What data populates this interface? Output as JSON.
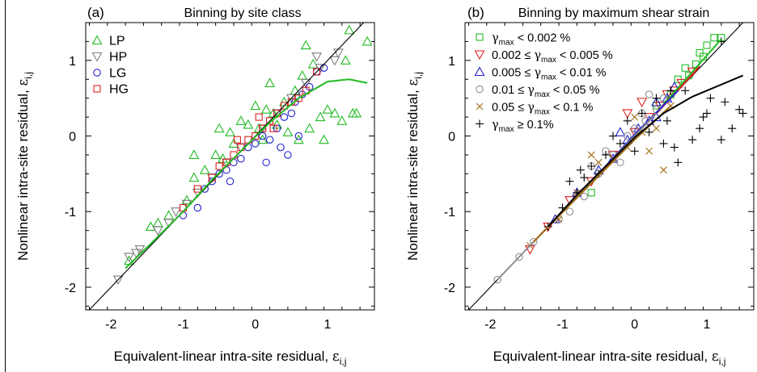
{
  "chart_data": [
    {
      "type": "scatter",
      "panel_label": "(a)",
      "title": "Binning by site class",
      "xlabel": "Equivalent-linear intra-site residual,",
      "xlabel_symbol": "ε",
      "xlabel_subscript": "i,j",
      "ylabel": "Nonlinear intra-site residual,",
      "ylabel_symbol": "ε",
      "ylabel_subscript": "i,j",
      "xlim": [
        -2.35,
        1.65
      ],
      "ylim": [
        -2.3,
        1.5
      ],
      "xticks": [
        -2,
        -1,
        0,
        1
      ],
      "yticks": [
        -2,
        -1,
        0,
        1
      ],
      "legend_position": "top-left",
      "series": [
        {
          "name": "LP",
          "marker": "triangle-up",
          "color": "#22bb22",
          "points": [
            [
              -1.75,
              -1.65
            ],
            [
              -1.45,
              -1.2
            ],
            [
              -1.35,
              -1.15
            ],
            [
              -1.2,
              -1.05
            ],
            [
              -0.95,
              -0.85
            ],
            [
              -0.85,
              -0.55
            ],
            [
              -0.7,
              -0.45
            ],
            [
              -0.55,
              -0.25
            ],
            [
              -0.45,
              -0.3
            ],
            [
              -0.35,
              0.05
            ],
            [
              -0.3,
              -0.1
            ],
            [
              -0.2,
              0.2
            ],
            [
              -0.1,
              0.15
            ],
            [
              0.0,
              0.4
            ],
            [
              0.05,
              0.1
            ],
            [
              0.1,
              -0.05
            ],
            [
              0.15,
              0.35
            ],
            [
              0.25,
              0.3
            ],
            [
              0.3,
              0.15
            ],
            [
              0.4,
              0.45
            ],
            [
              0.45,
              0.05
            ],
            [
              0.55,
              0.6
            ],
            [
              0.6,
              -0.05
            ],
            [
              0.65,
              0.8
            ],
            [
              0.75,
              0.1
            ],
            [
              0.8,
              0.95
            ],
            [
              0.9,
              0.25
            ],
            [
              1.0,
              0.35
            ],
            [
              1.1,
              0.3
            ],
            [
              1.2,
              0.2
            ],
            [
              1.25,
              1.0
            ],
            [
              1.3,
              1.4
            ],
            [
              1.35,
              0.3
            ],
            [
              1.4,
              0.3
            ],
            [
              1.55,
              1.25
            ],
            [
              0.2,
              0.7
            ],
            [
              -0.5,
              0.1
            ],
            [
              -0.85,
              -0.25
            ],
            [
              0.7,
              1.2
            ],
            [
              0.95,
              -0.05
            ]
          ]
        },
        {
          "name": "HP",
          "marker": "triangle-down",
          "color": "#808080",
          "points": [
            [
              -1.9,
              -1.9
            ],
            [
              -1.75,
              -1.6
            ],
            [
              -1.65,
              -1.55
            ],
            [
              -1.6,
              -1.5
            ],
            [
              -1.35,
              -1.25
            ],
            [
              -1.2,
              -1.15
            ],
            [
              -1.1,
              -1.0
            ],
            [
              -0.95,
              -0.9
            ],
            [
              -0.8,
              -0.75
            ],
            [
              -0.6,
              -0.55
            ],
            [
              -0.4,
              -0.35
            ],
            [
              -0.2,
              -0.15
            ],
            [
              0.1,
              0.1
            ],
            [
              0.3,
              0.3
            ],
            [
              0.5,
              0.5
            ],
            [
              0.7,
              0.7
            ],
            [
              0.9,
              0.9
            ],
            [
              1.1,
              1.0
            ],
            [
              1.15,
              1.1
            ],
            [
              0.85,
              1.05
            ]
          ]
        },
        {
          "name": "LG",
          "marker": "circle",
          "color": "#2222cc",
          "points": [
            [
              -1.0,
              -1.05
            ],
            [
              -0.8,
              -0.95
            ],
            [
              -0.7,
              -0.7
            ],
            [
              -0.6,
              -0.6
            ],
            [
              -0.5,
              -0.5
            ],
            [
              -0.4,
              -0.45
            ],
            [
              -0.3,
              -0.35
            ],
            [
              -0.2,
              -0.3
            ],
            [
              -0.1,
              -0.15
            ],
            [
              0.0,
              -0.1
            ],
            [
              0.1,
              0.0
            ],
            [
              0.2,
              -0.05
            ],
            [
              0.3,
              0.1
            ],
            [
              0.35,
              -0.15
            ],
            [
              0.4,
              0.25
            ],
            [
              0.5,
              0.3
            ],
            [
              0.55,
              0.45
            ],
            [
              0.6,
              0.0
            ],
            [
              0.65,
              0.55
            ],
            [
              0.75,
              0.65
            ],
            [
              0.85,
              0.85
            ],
            [
              0.95,
              0.9
            ],
            [
              -0.35,
              -0.6
            ],
            [
              0.15,
              -0.35
            ],
            [
              0.45,
              -0.25
            ]
          ]
        },
        {
          "name": "HG",
          "marker": "square",
          "color": "#dd2222",
          "points": [
            [
              -1.0,
              -0.95
            ],
            [
              -0.8,
              -0.7
            ],
            [
              -0.6,
              -0.55
            ],
            [
              -0.5,
              -0.4
            ],
            [
              -0.4,
              -0.35
            ],
            [
              -0.3,
              -0.25
            ],
            [
              -0.2,
              -0.15
            ],
            [
              -0.1,
              -0.05
            ],
            [
              0.0,
              0.0
            ],
            [
              0.1,
              0.1
            ],
            [
              0.2,
              0.2
            ],
            [
              0.3,
              0.3
            ],
            [
              0.4,
              0.4
            ],
            [
              0.5,
              0.45
            ],
            [
              0.6,
              0.5
            ],
            [
              0.7,
              0.6
            ],
            [
              0.85,
              0.85
            ],
            [
              -0.25,
              -0.05
            ],
            [
              0.05,
              0.25
            ],
            [
              0.25,
              0.1
            ]
          ]
        }
      ],
      "reference_line": {
        "type": "1:1",
        "from": [
          -2.35,
          -2.35
        ],
        "to": [
          1.65,
          1.65
        ],
        "color": "#000000"
      },
      "fit_curve": {
        "color": "#22bb22",
        "x": [
          -1.8,
          -1.4,
          -1.0,
          -0.6,
          -0.2,
          0.2,
          0.6,
          1.0,
          1.3,
          1.55
        ],
        "y": [
          -1.75,
          -1.38,
          -1.0,
          -0.58,
          -0.2,
          0.18,
          0.5,
          0.72,
          0.75,
          0.7
        ]
      }
    },
    {
      "type": "scatter",
      "panel_label": "(b)",
      "title": "Binning by maximum shear strain",
      "xlabel": "Equivalent-linear intra-site residual,",
      "xlabel_symbol": "ε",
      "xlabel_subscript": "i,j",
      "ylabel": "Nonlinear intra-site residual,",
      "ylabel_symbol": "ε",
      "ylabel_subscript": "i,j",
      "xlim": [
        -2.35,
        1.65
      ],
      "ylim": [
        -2.3,
        1.5
      ],
      "xticks": [
        -2,
        -1,
        0,
        1
      ],
      "yticks": [
        -2,
        -1,
        0,
        1
      ],
      "legend_position": "top-left",
      "series": [
        {
          "name": "γmax < 0.002 %",
          "pre": "",
          "sym": "γ",
          "sub": "max",
          "post": " < 0.002 %",
          "marker": "square",
          "color": "#22bb22",
          "points": [
            [
              0.6,
              0.75
            ],
            [
              0.7,
              0.9
            ],
            [
              0.85,
              0.95
            ],
            [
              0.95,
              1.05
            ],
            [
              1.0,
              1.2
            ],
            [
              1.1,
              1.3
            ],
            [
              1.2,
              1.3
            ],
            [
              0.75,
              0.8
            ],
            [
              0.5,
              0.55
            ],
            [
              0.3,
              0.4
            ],
            [
              -0.6,
              -0.75
            ],
            [
              0.9,
              1.1
            ]
          ]
        },
        {
          "name": "0.002 ≤ γmax < 0.005 %",
          "pre": "0.002 ≤ ",
          "sym": "γ",
          "sub": "max",
          "post": " < 0.005 %",
          "marker": "triangle-down",
          "color": "#dd2222",
          "points": [
            [
              -1.45,
              -1.5
            ],
            [
              -1.2,
              -1.2
            ],
            [
              -0.9,
              -0.85
            ],
            [
              -0.6,
              -0.6
            ],
            [
              -0.3,
              -0.25
            ],
            [
              0.0,
              0.05
            ],
            [
              0.2,
              0.25
            ],
            [
              0.35,
              0.4
            ],
            [
              0.45,
              0.55
            ],
            [
              0.55,
              0.6
            ],
            [
              0.65,
              0.7
            ],
            [
              0.8,
              0.85
            ],
            [
              -0.1,
              0.3
            ],
            [
              0.1,
              0.45
            ]
          ]
        },
        {
          "name": "0.005 ≤ γmax < 0.01 %",
          "pre": "0.005 ≤ ",
          "sym": "γ",
          "sub": "max",
          "post": " < 0.01 %",
          "marker": "triangle-up",
          "color": "#2222cc",
          "points": [
            [
              -1.1,
              -1.1
            ],
            [
              -0.8,
              -0.75
            ],
            [
              -0.5,
              -0.45
            ],
            [
              -0.3,
              -0.3
            ],
            [
              -0.1,
              -0.05
            ],
            [
              0.05,
              0.1
            ],
            [
              0.2,
              0.2
            ],
            [
              0.3,
              0.25
            ],
            [
              0.45,
              0.5
            ],
            [
              0.55,
              0.65
            ],
            [
              0.3,
              0.45
            ],
            [
              -0.2,
              0.05
            ]
          ]
        },
        {
          "name": "0.01 ≤ γmax < 0.05 %",
          "pre": "0.01 ≤ ",
          "sym": "γ",
          "sub": "max",
          "post": " < 0.05 %",
          "marker": "circle",
          "color": "#909090",
          "points": [
            [
              -1.9,
              -1.9
            ],
            [
              -1.6,
              -1.6
            ],
            [
              -1.4,
              -1.4
            ],
            [
              -1.05,
              -1.1
            ],
            [
              -0.9,
              -1.0
            ],
            [
              -0.7,
              -0.8
            ],
            [
              -0.5,
              -0.5
            ],
            [
              -0.3,
              -0.25
            ],
            [
              -0.1,
              0.0
            ],
            [
              0.0,
              0.1
            ],
            [
              0.15,
              0.2
            ],
            [
              0.3,
              0.35
            ],
            [
              0.4,
              0.5
            ],
            [
              -0.4,
              -0.2
            ],
            [
              -0.2,
              -0.35
            ],
            [
              0.1,
              0.3
            ],
            [
              -0.6,
              -0.4
            ],
            [
              0.2,
              0.55
            ]
          ]
        },
        {
          "name": "0.05 ≤ γmax < 0.1 %",
          "pre": "0.05 ≤ ",
          "sym": "γ",
          "sub": "max",
          "post": " < 0.1 %",
          "marker": "x",
          "color": "#a06a10",
          "points": [
            [
              -1.45,
              -1.45
            ],
            [
              -1.05,
              -1.1
            ],
            [
              -0.8,
              -0.75
            ],
            [
              -0.5,
              -0.35
            ],
            [
              -0.3,
              -0.3
            ],
            [
              -0.1,
              -0.15
            ],
            [
              0.1,
              0.05
            ],
            [
              0.2,
              -0.2
            ],
            [
              0.3,
              0.1
            ],
            [
              0.4,
              -0.45
            ],
            [
              0.5,
              0.4
            ],
            [
              -0.6,
              -0.25
            ],
            [
              0.0,
              0.25
            ]
          ]
        },
        {
          "name": "γmax ≥ 0.1%",
          "pre": "",
          "sym": "γ",
          "sub": "max",
          "post": " ≥ 0.1%",
          "marker": "plus",
          "color": "#000000",
          "points": [
            [
              -1.2,
              -1.2
            ],
            [
              -1.0,
              -0.95
            ],
            [
              -0.9,
              -0.6
            ],
            [
              -0.8,
              -0.75
            ],
            [
              -0.7,
              -0.55
            ],
            [
              -0.6,
              -0.4
            ],
            [
              -0.5,
              -0.5
            ],
            [
              -0.4,
              -0.25
            ],
            [
              -0.3,
              0.0
            ],
            [
              -0.2,
              -0.1
            ],
            [
              -0.1,
              0.2
            ],
            [
              0.0,
              -0.2
            ],
            [
              0.1,
              0.3
            ],
            [
              0.2,
              0.05
            ],
            [
              0.3,
              0.5
            ],
            [
              0.4,
              -0.1
            ],
            [
              0.45,
              0.2
            ],
            [
              0.5,
              0.6
            ],
            [
              0.55,
              -0.15
            ],
            [
              0.6,
              -0.35
            ],
            [
              0.7,
              0.6
            ],
            [
              0.8,
              -0.05
            ],
            [
              0.9,
              0.1
            ],
            [
              1.0,
              0.3
            ],
            [
              1.05,
              0.5
            ],
            [
              1.2,
              1.25
            ],
            [
              1.2,
              -0.05
            ],
            [
              1.25,
              0.45
            ],
            [
              1.35,
              0.1
            ],
            [
              1.45,
              0.35
            ],
            [
              1.5,
              0.3
            ],
            [
              -0.75,
              -0.45
            ],
            [
              0.95,
              0.25
            ]
          ]
        }
      ],
      "reference_line": {
        "type": "1:1",
        "from": [
          -2.35,
          -2.35
        ],
        "to": [
          1.65,
          1.65
        ],
        "color": "#000000"
      },
      "fit_curves": [
        {
          "color": "#22bb22",
          "x": [
            0.4,
            0.8,
            1.2
          ],
          "y": [
            0.42,
            0.85,
            1.28
          ]
        },
        {
          "color": "#dd2222",
          "x": [
            -1.5,
            -1.0,
            -0.5,
            0.0,
            0.5,
            0.9
          ],
          "y": [
            -1.5,
            -1.0,
            -0.52,
            0.0,
            0.5,
            0.92
          ]
        },
        {
          "color": "#2222cc",
          "x": [
            -1.1,
            -0.5,
            0.0,
            0.6
          ],
          "y": [
            -1.1,
            -0.5,
            0.02,
            0.6
          ]
        },
        {
          "color": "#909090",
          "x": [
            -1.9,
            -1.0,
            -0.3,
            0.3
          ],
          "y": [
            -1.9,
            -1.0,
            -0.3,
            0.3
          ]
        },
        {
          "color": "#a06a10",
          "x": [
            -1.4,
            -0.7,
            0.0,
            0.5
          ],
          "y": [
            -1.4,
            -0.72,
            -0.05,
            0.4
          ]
        },
        {
          "color": "#000000",
          "x": [
            -1.2,
            -0.8,
            -0.4,
            0.0,
            0.4,
            0.8,
            1.2,
            1.5
          ],
          "y": [
            -1.2,
            -0.78,
            -0.4,
            -0.02,
            0.3,
            0.52,
            0.68,
            0.8
          ]
        }
      ]
    }
  ]
}
